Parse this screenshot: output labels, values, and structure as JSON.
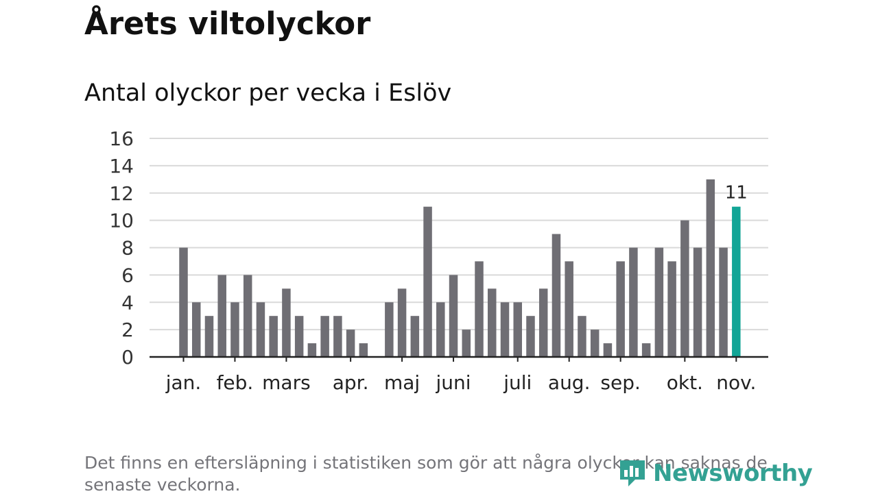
{
  "header": {
    "title": "Årets viltolyckor",
    "subtitle": "Antal olyckor per vecka i Eslöv"
  },
  "footer": {
    "note": "Det finns en eftersläpning i statistiken som gör att några olyckor kan saknas de senaste veckorna.",
    "brand": "Newsworthy"
  },
  "colors": {
    "bar": "#6f6e74",
    "highlight": "#12a596",
    "grid": "#d9d9d9",
    "axis": "#222222",
    "brand": "#33a193"
  },
  "chart_data": {
    "type": "bar",
    "title": "Antal olyckor per vecka i Eslöv",
    "xlabel": "",
    "ylabel": "",
    "ylim": [
      0,
      16
    ],
    "yticks": [
      0,
      2,
      4,
      6,
      8,
      10,
      12,
      14,
      16
    ],
    "grid": true,
    "week_count": 44,
    "values": [
      8,
      4,
      3,
      6,
      4,
      6,
      4,
      3,
      5,
      3,
      1,
      3,
      3,
      2,
      1,
      null,
      4,
      5,
      3,
      11,
      4,
      6,
      2,
      7,
      5,
      4,
      4,
      3,
      5,
      9,
      7,
      3,
      2,
      1,
      7,
      8,
      1,
      8,
      7,
      10,
      8,
      13,
      8,
      11
    ],
    "highlight_index": 43,
    "highlight_label": "11",
    "month_labels": [
      {
        "label": "jan.",
        "week": 0
      },
      {
        "label": "feb.",
        "week": 4
      },
      {
        "label": "mars",
        "week": 8
      },
      {
        "label": "apr.",
        "week": 13
      },
      {
        "label": "maj",
        "week": 17
      },
      {
        "label": "juni",
        "week": 21
      },
      {
        "label": "juli",
        "week": 26
      },
      {
        "label": "aug.",
        "week": 30
      },
      {
        "label": "sep.",
        "week": 34
      },
      {
        "label": "okt.",
        "week": 39
      },
      {
        "label": "nov.",
        "week": 43
      }
    ]
  }
}
